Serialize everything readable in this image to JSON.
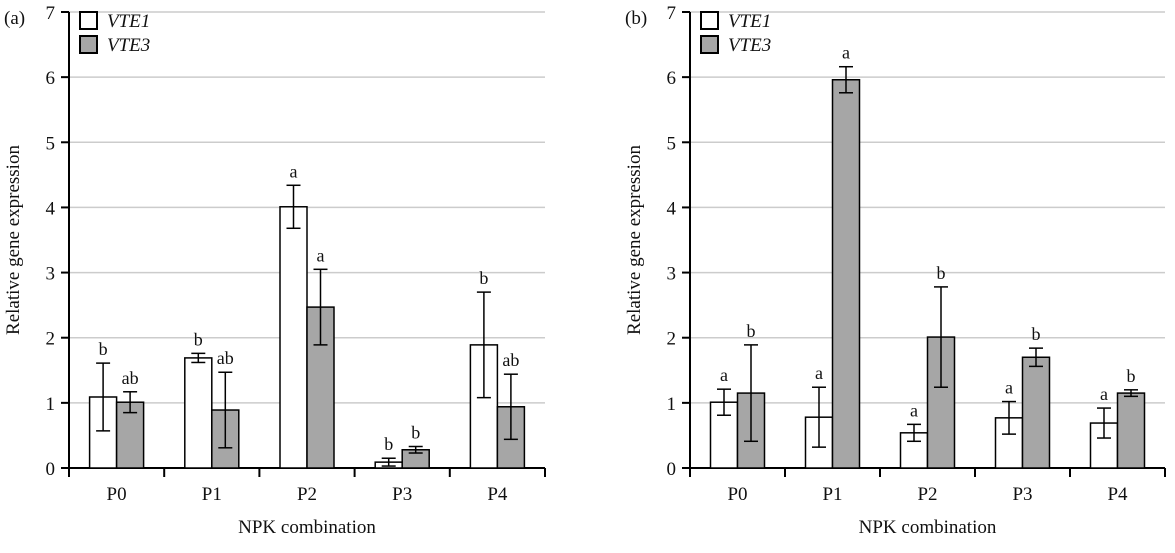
{
  "chart_data": [
    {
      "type": "bar",
      "panel_label": "(a)",
      "xlabel": "NPK combination",
      "ylabel": "Relative gene expression",
      "ylim": [
        0,
        7
      ],
      "yticks": [
        "0",
        "1",
        "2",
        "3",
        "4",
        "5",
        "6",
        "7"
      ],
      "grid": true,
      "legend_placement": "top-left",
      "categories": [
        "P0",
        "P1",
        "P2",
        "P3",
        "P4"
      ],
      "series": [
        {
          "name": "VTE1",
          "color": "#ffffff",
          "values": [
            1.09,
            1.69,
            4.01,
            0.09,
            1.89
          ],
          "errors": [
            0.52,
            0.07,
            0.33,
            0.06,
            0.81
          ],
          "letters": [
            "b",
            "b",
            "a",
            "b",
            "b"
          ]
        },
        {
          "name": "VTE3",
          "color": "#a6a6a6",
          "values": [
            1.01,
            0.89,
            2.47,
            0.28,
            0.94
          ],
          "errors": [
            0.16,
            0.58,
            0.58,
            0.05,
            0.5
          ],
          "letters": [
            "ab",
            "ab",
            "a",
            "b",
            "ab"
          ]
        }
      ]
    },
    {
      "type": "bar",
      "panel_label": "(b)",
      "xlabel": "NPK combination",
      "ylabel": "Relative gene expression",
      "ylim": [
        0,
        7
      ],
      "yticks": [
        "0",
        "1",
        "2",
        "3",
        "4",
        "5",
        "6",
        "7"
      ],
      "grid": true,
      "legend_placement": "top-left",
      "categories": [
        "P0",
        "P1",
        "P2",
        "P3",
        "P4"
      ],
      "series": [
        {
          "name": "VTE1",
          "color": "#ffffff",
          "values": [
            1.01,
            0.78,
            0.54,
            0.77,
            0.69
          ],
          "errors": [
            0.2,
            0.46,
            0.13,
            0.25,
            0.23
          ],
          "letters": [
            "a",
            "a",
            "a",
            "a",
            "a"
          ]
        },
        {
          "name": "VTE3",
          "color": "#a6a6a6",
          "values": [
            1.15,
            5.96,
            2.01,
            1.7,
            1.15
          ],
          "errors": [
            0.74,
            0.2,
            0.77,
            0.14,
            0.05
          ],
          "letters": [
            "b",
            "a",
            "b",
            "b",
            "b"
          ]
        }
      ]
    }
  ]
}
